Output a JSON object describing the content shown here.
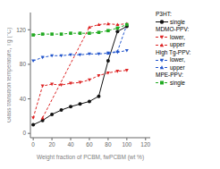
{
  "chart_data": {
    "type": "line",
    "xlabel": "Weight fraction of PCBM, fwPCBM (wt %)",
    "ylabel": "Glass transition temperature, Tg (°C)",
    "xlim": [
      -3,
      125
    ],
    "ylim": [
      -5,
      140
    ],
    "xticks": [
      0,
      20,
      40,
      60,
      80,
      100,
      120
    ],
    "yticks": [
      0,
      40,
      80,
      120
    ],
    "grid": false,
    "legend": "right",
    "series": [
      {
        "group": "P3HT:",
        "name": "single",
        "color": "#111111",
        "marker": "circle",
        "line_style": "solid",
        "x": [
          0,
          10,
          20,
          30,
          40,
          50,
          60,
          70,
          80,
          90,
          100
        ],
        "values": [
          10,
          15,
          22,
          27,
          31,
          34,
          37,
          43,
          84,
          118,
          124
        ]
      },
      {
        "group": "MDMO-PPV:",
        "name": "lower,",
        "color": "#dd2222",
        "marker": "triangle-down",
        "line_style": "dashed",
        "x": [
          0,
          10,
          20,
          30,
          40,
          50,
          60,
          70,
          80,
          90,
          100
        ],
        "values": [
          18,
          55,
          57,
          56,
          58,
          59,
          62,
          67,
          70,
          72,
          73
        ]
      },
      {
        "group": "MDMO-PPV:",
        "name": "upper",
        "color": "#dd2222",
        "marker": "triangle-up",
        "line_style": "dashed",
        "x": [
          10,
          60,
          70,
          80,
          90,
          100
        ],
        "values": [
          18,
          123,
          126,
          127,
          126,
          127
        ]
      },
      {
        "group": "High Tg-PPV:",
        "name": "lower,",
        "color": "#2255cc",
        "marker": "triangle-down",
        "line_style": "dashed",
        "x": [
          0,
          10,
          20,
          30,
          40,
          50,
          60,
          70,
          80,
          90,
          100
        ],
        "values": [
          84,
          88,
          90,
          90,
          91,
          91,
          92,
          92,
          93,
          94,
          96
        ]
      },
      {
        "group": "High Tg-PPV:",
        "name": "upper",
        "color": "#2255cc",
        "marker": "triangle-up",
        "line_style": "dashed",
        "x": [
          80,
          90,
          100
        ],
        "values": [
          93,
          95,
          126
        ]
      },
      {
        "group": "MPE-PPV:",
        "name": "single",
        "color": "#22aa22",
        "marker": "square",
        "line_style": "dashed",
        "x": [
          0,
          10,
          20,
          30,
          40,
          50,
          60,
          70,
          80,
          90,
          100
        ],
        "values": [
          114,
          115,
          115,
          115,
          116,
          116,
          116,
          117,
          119,
          122,
          126
        ]
      }
    ]
  }
}
